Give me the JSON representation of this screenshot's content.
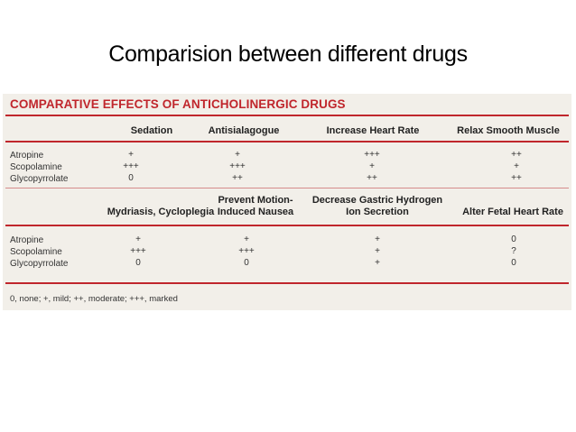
{
  "slide": {
    "title": "Comparision between different drugs"
  },
  "table": {
    "title": "COMPARATIVE EFFECTS OF ANTICHOLINERGIC DRUGS",
    "section1": {
      "headers": [
        "Sedation",
        "Antisialagogue",
        "Increase Heart Rate",
        "Relax Smooth Muscle"
      ],
      "rows": [
        {
          "drug": "Atropine",
          "values": [
            "+",
            "+",
            "+++",
            "++"
          ]
        },
        {
          "drug": "Scopolamine",
          "values": [
            "+++",
            "+++",
            "+",
            "+"
          ]
        },
        {
          "drug": "Glycopyrrolate",
          "values": [
            "0",
            "++",
            "++",
            "++"
          ]
        }
      ]
    },
    "section2": {
      "headers": [
        "Mydriasis, Cycloplegia",
        "Prevent Motion-Induced Nausea",
        "Decrease Gastric Hydrogen Ion Secretion",
        "Alter Fetal Heart Rate"
      ],
      "header_lines": [
        [
          "Mydriasis, Cycloplegia"
        ],
        [
          "Prevent Motion-",
          "Induced Nausea"
        ],
        [
          "Decrease Gastric Hydrogen",
          "Ion Secretion"
        ],
        [
          "Alter Fetal Heart Rate"
        ]
      ],
      "rows": [
        {
          "drug": "Atropine",
          "values": [
            "+",
            "+",
            "+",
            "0"
          ]
        },
        {
          "drug": "Scopolamine",
          "values": [
            "+++",
            "+++",
            "+",
            "?"
          ]
        },
        {
          "drug": "Glycopyrrolate",
          "values": [
            "0",
            "0",
            "+",
            "0"
          ]
        }
      ]
    },
    "footnote": "0, none; +, mild; ++, moderate; +++, marked"
  }
}
